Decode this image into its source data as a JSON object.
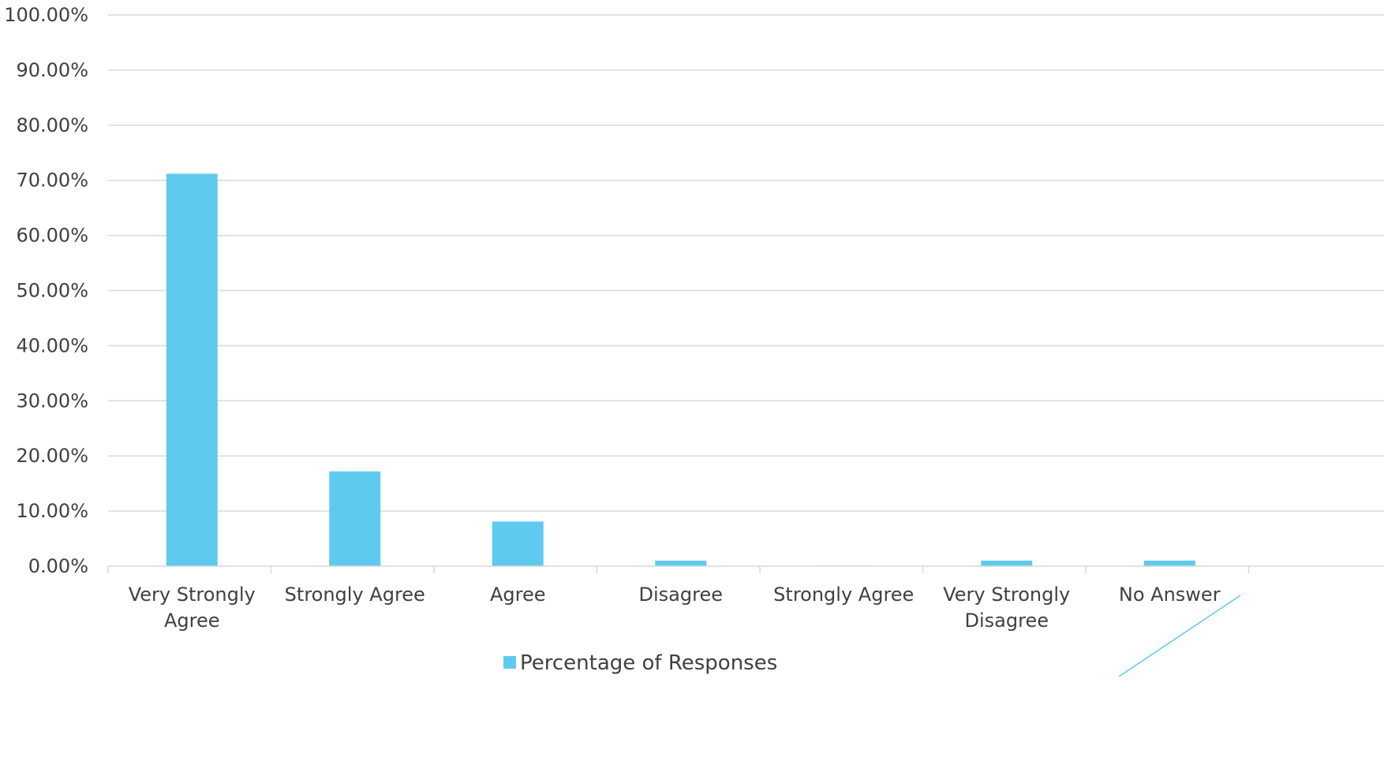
{
  "chart_data": {
    "type": "bar",
    "categories": [
      [
        "Very Strongly",
        "Agree"
      ],
      [
        "Strongly Agree"
      ],
      [
        "Agree"
      ],
      [
        "Disagree"
      ],
      [
        "Strongly Agree"
      ],
      [
        "Very Strongly",
        "Disagree"
      ],
      [
        "No Answer"
      ]
    ],
    "series": [
      {
        "name": "Percentage of Responses",
        "color": "#5ECBEE",
        "values": [
          71.2,
          17.2,
          8.1,
          1.0,
          0.1,
          1.0,
          1.0
        ]
      }
    ],
    "ylim": [
      0,
      100
    ],
    "yticks": [
      "0.00%",
      "10.00%",
      "20.00%",
      "30.00%",
      "40.00%",
      "50.00%",
      "60.00%",
      "70.00%",
      "80.00%",
      "90.00%",
      "100.00%"
    ],
    "grid": true,
    "legend_position": "bottom",
    "gridline_color": "#D9D9D9",
    "axis_line_color": "#D9D9D9",
    "decoration_line_color": "#5ECBEE"
  }
}
